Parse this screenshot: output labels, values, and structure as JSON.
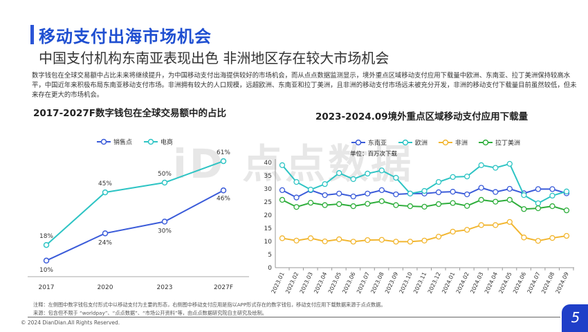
{
  "header": {
    "title": "移动支付出海市场机会",
    "subtitle": "中国支付机构东南亚表现出色 非洲地区存在较大市场机会"
  },
  "paragraph": "数字钱包在全球交易额中占比未来将继续提升，为中国移动支付出海提供较好的市场机会，而从点点数据监测显示，境外重点区域移动支付应用下载量中欧洲、东南亚、拉丁美洲保持较高水平，中国近年来积极布局东南亚移动支付市场。非洲拥有较大的人口规模，远超欧洲、东南亚和拉丁美洲，且非洲的移动支付市场远未被充分开发，非洲的移动支付下载量目前虽然较低，但未来存在更大的市场机会。",
  "watermark": "iD 点点数据",
  "chart_data": [
    {
      "type": "line",
      "title": "2017-2027F数字钱包在全球交易额中的占比",
      "categories": [
        "2017",
        "2020",
        "2023",
        "2027F"
      ],
      "series": [
        {
          "name": "销售点",
          "color": "#3a5bd9",
          "values": [
            10,
            24,
            30,
            46
          ],
          "labels": [
            "10%",
            "24%",
            "30%",
            "46%"
          ]
        },
        {
          "name": "电商",
          "color": "#2ec4c4",
          "values": [
            18,
            45,
            50,
            61
          ],
          "labels": [
            "18%",
            "45%",
            "50%",
            "61%"
          ]
        }
      ],
      "legend": "top",
      "ylim": [
        0,
        70
      ],
      "grid": false
    },
    {
      "type": "line",
      "title": "2023-2024.09境外重点区域移动支付应用下载量",
      "unit_label": "单位：百万次下载",
      "categories": [
        "2023.01",
        "2023.02",
        "2023.03",
        "2023.04",
        "2023.05",
        "2023.06",
        "2023.07",
        "2023.08",
        "2023.09",
        "2023.10",
        "2023.11",
        "2023.12",
        "2024.01",
        "2024.02",
        "2024.03",
        "2024.04",
        "2024.05",
        "2024.06",
        "2024.07",
        "2024.08",
        "2024.09"
      ],
      "yticks": [
        "0",
        "5",
        "10",
        "15",
        "20",
        "25",
        "30",
        "35",
        "40"
      ],
      "ylim": [
        0,
        40
      ],
      "series": [
        {
          "name": "东南亚",
          "color": "#3a5bd9",
          "values": [
            29.5,
            26.7,
            29.5,
            27.6,
            28.2,
            27.1,
            28.2,
            29.5,
            27.9,
            28.2,
            28.2,
            28.7,
            28.9,
            27.9,
            30.4,
            28.8,
            30,
            28.3,
            29.9,
            29.9,
            28.3
          ]
        },
        {
          "name": "欧洲",
          "color": "#2ec4c4",
          "values": [
            39,
            32.6,
            29.7,
            31.8,
            36,
            33.7,
            35.8,
            37,
            34.2,
            28.2,
            29.2,
            32.6,
            34.5,
            34.7,
            39,
            38,
            39.5,
            27.6,
            24.5,
            27.4,
            29
          ]
        },
        {
          "name": "非洲",
          "color": "#f2b630",
          "values": [
            11.2,
            10.3,
            11.2,
            10,
            10.8,
            9.9,
            10.5,
            10.6,
            9.9,
            9.9,
            10.3,
            11.8,
            13.7,
            14.4,
            16.2,
            16.2,
            17.4,
            11.5,
            10.2,
            11.3,
            12.1
          ]
        },
        {
          "name": "拉丁美洲",
          "color": "#2fae3c",
          "values": [
            25.8,
            23.1,
            24.7,
            23.8,
            24.2,
            23.4,
            24.3,
            25.3,
            23.8,
            23.4,
            23.2,
            24.2,
            24.6,
            23.5,
            25.8,
            25.1,
            25.8,
            22.3,
            22.6,
            23.4,
            21.8
          ]
        }
      ],
      "legend": "top",
      "grid": false
    }
  ],
  "footer": {
    "note": "注释：左侧图中数字钱包支付形式中以移动支付为主要的形态，右侧图中移动支付应用是指以APP形式存在的数字钱包，移动支付应用下载数据来源于点点数据。",
    "source": "来源：包含但不限于 “worldpay”、“点点数据”、“市场公开资料”等，由点点数据研究院自主研究及绘制。",
    "copyright": "© 2024 DianDian.All Rights Reserved.",
    "page": "5"
  }
}
